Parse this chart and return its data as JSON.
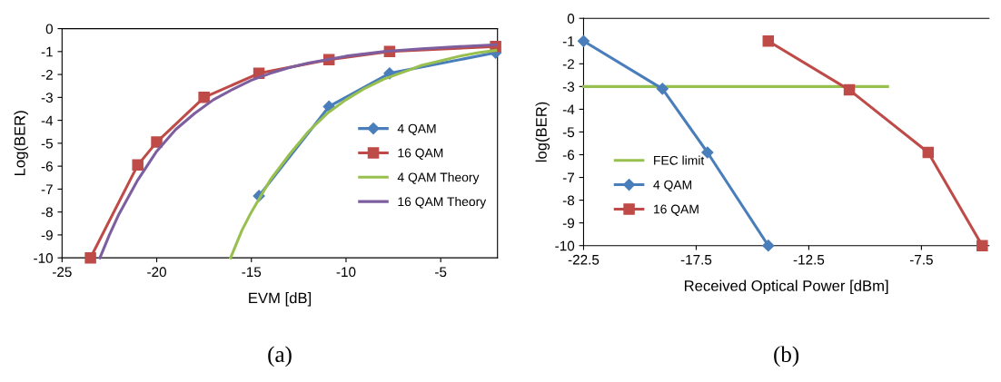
{
  "chart_data": [
    {
      "type": "line",
      "xlabel": "EVM [dB]",
      "ylabel": "Log(BER)",
      "xlim": [
        -25,
        -2
      ],
      "xticks": [
        -25,
        -20,
        -15,
        -10,
        -5
      ],
      "ylim": [
        -10,
        0
      ],
      "yticks": [
        0,
        -1,
        -2,
        -3,
        -4,
        -5,
        -6,
        -7,
        -8,
        -9,
        -10
      ],
      "grid": false,
      "legend": "right",
      "annotations": [
        "(a)"
      ],
      "series": [
        {
          "name": "4 QAM",
          "color": "#4a7ebb",
          "marker": "diamond",
          "x": [
            -14.6,
            -10.9,
            -7.7,
            -2.1
          ],
          "values": [
            -7.3,
            -3.4,
            -1.95,
            -1.05
          ]
        },
        {
          "name": "16 QAM",
          "color": "#be4b48",
          "marker": "square",
          "x": [
            -23.5,
            -21,
            -20,
            -17.5,
            -14.6,
            -10.9,
            -7.7,
            -2.1
          ],
          "values": [
            -10,
            -5.95,
            -4.95,
            -3,
            -1.95,
            -1.35,
            -1.0,
            -0.78
          ]
        },
        {
          "name": "4 QAM Theory",
          "color": "#98c04f",
          "marker": "none",
          "x": [
            -16.1,
            -15.5,
            -15,
            -14.5,
            -14,
            -13,
            -12,
            -11,
            -10,
            -9,
            -8,
            -7,
            -6,
            -5,
            -4,
            -3,
            -2.1
          ],
          "values": [
            -10,
            -8.8,
            -8.0,
            -7.3,
            -6.6,
            -5.5,
            -4.5,
            -3.7,
            -3.1,
            -2.6,
            -2.2,
            -1.9,
            -1.6,
            -1.4,
            -1.2,
            -1.05,
            -0.95
          ]
        },
        {
          "name": "16 QAM Theory",
          "color": "#7d5fa0",
          "marker": "none",
          "x": [
            -23,
            -22.5,
            -22,
            -21,
            -20,
            -19,
            -18,
            -17,
            -16,
            -15,
            -14,
            -13,
            -12,
            -11,
            -10,
            -9,
            -8,
            -6,
            -4,
            -2.1
          ],
          "values": [
            -10,
            -9,
            -8.1,
            -6.6,
            -5.35,
            -4.4,
            -3.7,
            -3.1,
            -2.65,
            -2.25,
            -1.95,
            -1.7,
            -1.5,
            -1.35,
            -1.2,
            -1.1,
            -1.0,
            -0.88,
            -0.78,
            -0.7
          ]
        }
      ]
    },
    {
      "type": "line",
      "xlabel": "Received Optical Power [dBm]",
      "ylabel": "log(BER)",
      "xlim": [
        -22.5,
        -4.5
      ],
      "xticks": [
        -22.5,
        -17.5,
        -12.5,
        -7.5
      ],
      "ylim": [
        -10,
        0
      ],
      "yticks": [
        0,
        -1,
        -2,
        -3,
        -4,
        -5,
        -6,
        -7,
        -8,
        -9,
        -10
      ],
      "grid": false,
      "legend": "bottom left",
      "annotations": [
        "(b)"
      ],
      "series": [
        {
          "name": "FEC limit",
          "color": "#98c04f",
          "marker": "none",
          "x": [
            -22.5,
            -9
          ],
          "values": [
            -3,
            -3
          ]
        },
        {
          "name": "4 QAM",
          "color": "#4a7ebb",
          "marker": "diamond",
          "x": [
            -22.5,
            -19.0,
            -17.0,
            -14.3
          ],
          "values": [
            -1,
            -3.1,
            -5.9,
            -10
          ]
        },
        {
          "name": "16 QAM",
          "color": "#be4b48",
          "marker": "square",
          "x": [
            -14.3,
            -10.7,
            -7.2,
            -4.8
          ],
          "values": [
            -1,
            -3.15,
            -5.9,
            -10
          ]
        }
      ]
    }
  ]
}
